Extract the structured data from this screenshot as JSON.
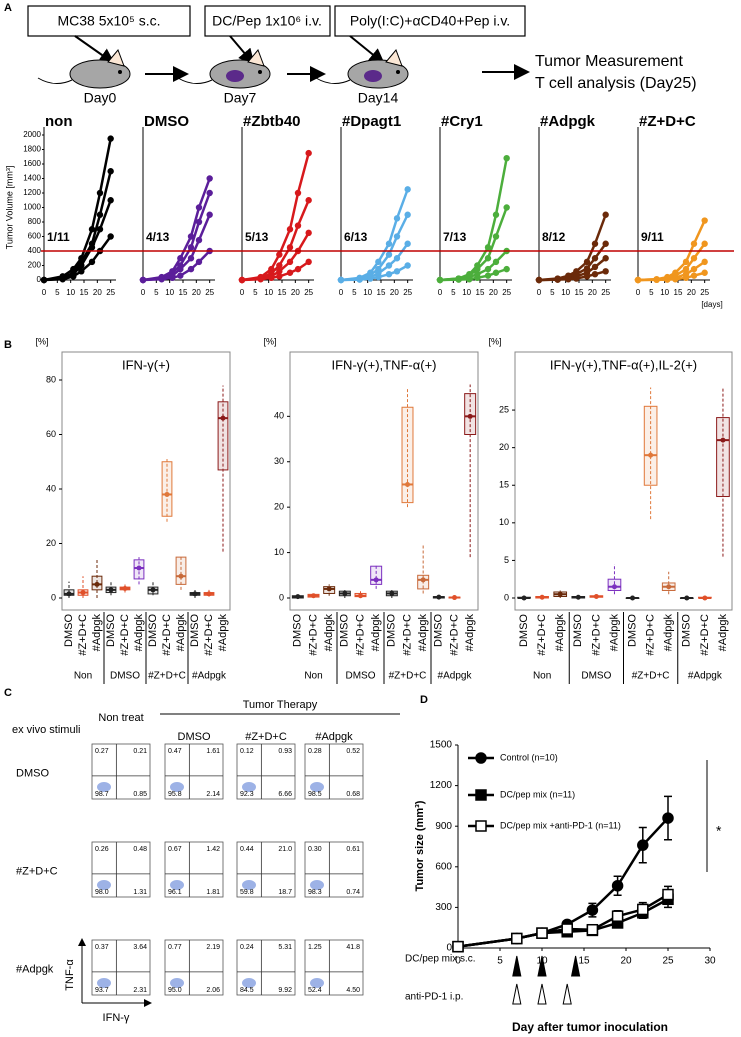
{
  "panel_labels": [
    "A",
    "B",
    "C",
    "D"
  ],
  "schematic": {
    "steps": [
      "MC38 5x10⁵ s.c.",
      "DC/Pep 1x10⁶ i.v.",
      "Poly(I:C)+αCD40+Pep i.v."
    ],
    "days": [
      "Day0",
      "Day7",
      "Day14"
    ],
    "endpoint": [
      "Tumor Measurement",
      "T cell analysis (Day25)"
    ]
  },
  "chart_data": [
    {
      "type": "line",
      "title": "non",
      "ratio": "1/11",
      "color": "#000000",
      "y_label": "Tumor Volume [mm³]",
      "x": [
        0,
        7,
        11,
        14,
        18,
        21,
        25
      ],
      "xlim": [
        0,
        27
      ],
      "xticks": [
        0,
        5,
        10,
        15,
        20,
        25
      ],
      "ylim": [
        0,
        2000
      ],
      "yticks": [
        0,
        200,
        400,
        600,
        800,
        1000,
        1200,
        1400,
        1600,
        1800,
        2000
      ],
      "reference_line": 400,
      "reference_color": "#c00000",
      "series": [
        {
          "values": [
            0,
            50,
            150,
            300,
            700,
            1200,
            1950
          ]
        },
        {
          "values": [
            0,
            30,
            100,
            250,
            500,
            900,
            1500
          ]
        },
        {
          "values": [
            0,
            20,
            80,
            200,
            450,
            700,
            1100
          ]
        },
        {
          "values": [
            0,
            10,
            50,
            120,
            250,
            400,
            600
          ]
        }
      ]
    },
    {
      "type": "line",
      "title": "DMSO",
      "ratio": "4/13",
      "color": "#5b1e9a",
      "x": [
        0,
        7,
        11,
        14,
        18,
        21,
        25
      ],
      "xlim": [
        0,
        27
      ],
      "xticks": [
        0,
        5,
        10,
        15,
        20,
        25
      ],
      "ylim": [
        0,
        2000
      ],
      "reference_line": 400,
      "reference_color": "#c00000",
      "series": [
        {
          "values": [
            0,
            40,
            120,
            300,
            600,
            1000,
            1400
          ]
        },
        {
          "values": [
            0,
            30,
            100,
            200,
            450,
            800,
            1200
          ]
        },
        {
          "values": [
            0,
            20,
            60,
            150,
            300,
            550,
            900
          ]
        },
        {
          "values": [
            0,
            10,
            30,
            60,
            150,
            250,
            400
          ]
        }
      ]
    },
    {
      "type": "line",
      "title": "#Zbtb40",
      "ratio": "5/13",
      "color": "#d7191c",
      "x": [
        0,
        7,
        11,
        14,
        18,
        21,
        25
      ],
      "xlim": [
        0,
        27
      ],
      "xticks": [
        0,
        5,
        10,
        15,
        20,
        25
      ],
      "ylim": [
        0,
        2000
      ],
      "reference_line": 400,
      "reference_color": "#c00000",
      "series": [
        {
          "values": [
            0,
            40,
            150,
            350,
            700,
            1200,
            1750
          ]
        },
        {
          "values": [
            0,
            30,
            90,
            200,
            450,
            750,
            1100
          ]
        },
        {
          "values": [
            0,
            20,
            50,
            120,
            250,
            400,
            650
          ]
        },
        {
          "values": [
            0,
            10,
            30,
            50,
            100,
            150,
            250
          ]
        }
      ]
    },
    {
      "type": "line",
      "title": "#Dpagt1",
      "ratio": "6/13",
      "color": "#5aaee6",
      "x": [
        0,
        7,
        11,
        14,
        18,
        21,
        25
      ],
      "xlim": [
        0,
        27
      ],
      "xticks": [
        0,
        5,
        10,
        15,
        20,
        25
      ],
      "ylim": [
        0,
        2000
      ],
      "reference_line": 400,
      "reference_color": "#c00000",
      "series": [
        {
          "values": [
            0,
            30,
            100,
            250,
            500,
            850,
            1250
          ]
        },
        {
          "values": [
            0,
            20,
            70,
            150,
            350,
            600,
            900
          ]
        },
        {
          "values": [
            0,
            10,
            40,
            90,
            200,
            300,
            500
          ]
        },
        {
          "values": [
            0,
            5,
            20,
            40,
            80,
            120,
            200
          ]
        }
      ]
    },
    {
      "type": "line",
      "title": "#Cry1",
      "ratio": "7/13",
      "color": "#4cae3c",
      "x": [
        0,
        7,
        11,
        14,
        18,
        21,
        25
      ],
      "xlim": [
        0,
        27
      ],
      "xticks": [
        0,
        5,
        10,
        15,
        20,
        25
      ],
      "ylim": [
        0,
        2000
      ],
      "reference_line": 400,
      "reference_color": "#c00000",
      "series": [
        {
          "values": [
            0,
            20,
            80,
            200,
            450,
            900,
            1680
          ]
        },
        {
          "values": [
            0,
            20,
            60,
            150,
            300,
            600,
            1000
          ]
        },
        {
          "values": [
            0,
            10,
            40,
            80,
            150,
            250,
            400
          ]
        },
        {
          "values": [
            0,
            5,
            10,
            30,
            60,
            100,
            150
          ]
        }
      ]
    },
    {
      "type": "line",
      "title": "#Adpgk",
      "ratio": "8/12",
      "color": "#6b2a0a",
      "x": [
        0,
        7,
        11,
        14,
        18,
        21,
        25
      ],
      "xlim": [
        0,
        27
      ],
      "xticks": [
        0,
        5,
        10,
        15,
        20,
        25
      ],
      "ylim": [
        0,
        2000
      ],
      "reference_line": 400,
      "reference_color": "#c00000",
      "series": [
        {
          "values": [
            0,
            20,
            60,
            120,
            250,
            500,
            900
          ]
        },
        {
          "values": [
            0,
            10,
            40,
            80,
            160,
            300,
            500
          ]
        },
        {
          "values": [
            0,
            5,
            20,
            50,
            100,
            180,
            300
          ]
        },
        {
          "values": [
            0,
            5,
            10,
            20,
            50,
            80,
            120
          ]
        }
      ]
    },
    {
      "type": "line",
      "title": "#Z+D+C",
      "ratio": "9/11",
      "color": "#f0961e",
      "x_unit": "[days]",
      "x": [
        0,
        7,
        11,
        14,
        18,
        21,
        25
      ],
      "xlim": [
        0,
        27
      ],
      "xticks": [
        0,
        5,
        10,
        15,
        20,
        25
      ],
      "ylim": [
        0,
        2000
      ],
      "reference_line": 400,
      "reference_color": "#c00000",
      "series": [
        {
          "values": [
            0,
            10,
            40,
            100,
            250,
            500,
            820
          ]
        },
        {
          "values": [
            0,
            10,
            30,
            60,
            150,
            300,
            500
          ]
        },
        {
          "values": [
            0,
            5,
            15,
            30,
            80,
            150,
            250
          ]
        },
        {
          "values": [
            0,
            2,
            5,
            10,
            30,
            60,
            100
          ]
        }
      ]
    },
    {
      "type": "box",
      "title": "IFN-γ(+)",
      "unit": "[%]",
      "categories": [
        "DMSO",
        "#Z+D+C",
        "#Adpgk",
        "DMSO",
        "#Z+D+C",
        "#Adpgk",
        "DMSO",
        "#Z+D+C",
        "#Adpgk",
        "DMSO",
        "#Z+D+C",
        "#Adpgk"
      ],
      "groups": [
        "Non",
        "DMSO",
        "#Z+D+C",
        "#Adpgk"
      ],
      "colors": [
        "#222222",
        "#e0502a",
        "#6b2a0a",
        "#222222",
        "#e0502a",
        "#7b2fbf",
        "#222222",
        "#e0783a",
        "#c86a3a",
        "#222222",
        "#e0502a",
        "#8b1a1a"
      ],
      "ylim": [
        0,
        80
      ],
      "yticks": [
        0,
        20,
        40,
        60,
        80
      ],
      "boxes": [
        [
          0,
          1,
          1.5,
          3,
          6
        ],
        [
          0,
          1,
          2,
          3,
          8
        ],
        [
          0,
          3,
          5,
          8,
          14
        ],
        [
          1,
          2,
          3,
          4,
          6
        ],
        [
          2,
          3,
          3.5,
          4,
          5
        ],
        [
          5,
          7,
          11,
          14,
          15
        ],
        [
          1,
          1.5,
          3,
          4,
          6
        ],
        [
          28,
          30,
          38,
          50,
          51
        ],
        [
          3,
          5,
          8,
          15,
          15
        ],
        [
          0,
          1,
          1.5,
          2,
          3
        ],
        [
          0.5,
          1,
          1.5,
          2,
          3
        ],
        [
          17,
          47,
          66,
          72,
          78
        ]
      ]
    },
    {
      "type": "box",
      "title": "IFN-γ(+),TNF-α(+)",
      "unit": "[%]",
      "categories": [
        "DMSO",
        "#Z+D+C",
        "#Adpgk",
        "DMSO",
        "#Z+D+C",
        "#Adpgk",
        "DMSO",
        "#Z+D+C",
        "#Adpgk",
        "DMSO",
        "#Z+D+C",
        "#Adpgk"
      ],
      "groups": [
        "Non",
        "DMSO",
        "#Z+D+C",
        "#Adpgk"
      ],
      "colors": [
        "#222222",
        "#e0502a",
        "#6b2a0a",
        "#222222",
        "#e0502a",
        "#7b2fbf",
        "#222222",
        "#e0783a",
        "#c86a3a",
        "#222222",
        "#e0502a",
        "#8b1a1a"
      ],
      "ylim": [
        0,
        48
      ],
      "yticks": [
        0,
        10,
        20,
        30,
        40
      ],
      "boxes": [
        [
          0,
          0,
          0.3,
          0.5,
          1
        ],
        [
          0,
          0.2,
          0.5,
          0.8,
          1
        ],
        [
          0.5,
          1,
          2,
          2.5,
          3
        ],
        [
          0,
          0.5,
          1,
          1.5,
          2
        ],
        [
          0,
          0.3,
          0.5,
          1,
          1.5
        ],
        [
          2,
          3,
          4,
          7,
          7.5
        ],
        [
          0,
          0.5,
          1,
          1.5,
          2
        ],
        [
          20,
          21,
          25,
          42,
          46
        ],
        [
          1,
          2,
          4,
          5,
          12
        ],
        [
          0,
          0,
          0.2,
          0.3,
          0.5
        ],
        [
          0,
          0,
          0.1,
          0.2,
          0.3
        ],
        [
          9,
          36,
          40,
          45,
          47
        ]
      ]
    },
    {
      "type": "box",
      "title": "IFN-γ(+),TNF-α(+),IL-2(+)",
      "unit": "[%]",
      "categories": [
        "DMSO",
        "#Z+D+C",
        "#Adpgk",
        "DMSO",
        "#Z+D+C",
        "#Adpgk",
        "DMSO",
        "#Z+D+C",
        "#Adpgk",
        "DMSO",
        "#Z+D+C",
        "#Adpgk"
      ],
      "groups": [
        "Non",
        "DMSO",
        "#Z+D+C",
        "#Adpgk"
      ],
      "colors": [
        "#222222",
        "#e0502a",
        "#6b2a0a",
        "#222222",
        "#e0502a",
        "#7b2fbf",
        "#222222",
        "#e0783a",
        "#c86a3a",
        "#222222",
        "#e0502a",
        "#8b1a1a"
      ],
      "ylim": [
        0,
        29
      ],
      "yticks": [
        0,
        5,
        10,
        15,
        20,
        25
      ],
      "boxes": [
        [
          0,
          0,
          0,
          0.1,
          0.2
        ],
        [
          0,
          0,
          0.1,
          0.2,
          0.3
        ],
        [
          0,
          0.2,
          0.5,
          0.8,
          1
        ],
        [
          0,
          0,
          0.1,
          0.2,
          0.3
        ],
        [
          0,
          0.1,
          0.2,
          0.3,
          0.5
        ],
        [
          0.5,
          1,
          1.5,
          2.5,
          4.5
        ],
        [
          0,
          0,
          0,
          0,
          0.1
        ],
        [
          10.5,
          15,
          19,
          25.5,
          28
        ],
        [
          0.5,
          1,
          1.5,
          2,
          3.5
        ],
        [
          0,
          0,
          0,
          0,
          0.1
        ],
        [
          0,
          0,
          0,
          0.1,
          0.2
        ],
        [
          5.5,
          13.5,
          21,
          24,
          28
        ]
      ]
    },
    {
      "type": "line",
      "y_label": "Tumor size (mm³)",
      "x_label": "Day after tumor inoculation",
      "x": [
        0,
        7,
        10,
        13,
        16,
        19,
        22,
        25
      ],
      "xlim": [
        0,
        30
      ],
      "xticks": [
        0,
        5,
        10,
        15,
        20,
        25,
        30
      ],
      "ylim": [
        0,
        1500
      ],
      "yticks": [
        0,
        300,
        600,
        900,
        1200,
        1500
      ],
      "significance": "*",
      "series": [
        {
          "name": "Control (n=10)",
          "color": "#000000",
          "marker": "circle",
          "fill": "#000000",
          "values": [
            10,
            70,
            110,
            175,
            280,
            460,
            760,
            960
          ],
          "errors": [
            0,
            10,
            15,
            20,
            50,
            70,
            130,
            160
          ]
        },
        {
          "name": "DC/pep mix (n=11)",
          "color": "#000000",
          "marker": "square",
          "fill": "#000000",
          "values": [
            10,
            70,
            110,
            120,
            130,
            185,
            260,
            360
          ],
          "errors": [
            0,
            10,
            10,
            15,
            20,
            25,
            40,
            60
          ]
        },
        {
          "name": "DC/pep mix +anti-PD-1 (n=11)",
          "color": "#000000",
          "marker": "square",
          "fill": "#ffffff",
          "values": [
            10,
            70,
            110,
            140,
            135,
            235,
            285,
            395
          ],
          "errors": [
            0,
            10,
            10,
            15,
            20,
            40,
            50,
            60
          ]
        }
      ],
      "injections": [
        {
          "label": "DC/pep mix s.c.",
          "days": [
            7,
            10,
            14
          ],
          "fill": "#000000"
        },
        {
          "label": "anti-PD-1 i.p.",
          "days": [
            7,
            10,
            13
          ],
          "fill": "#ffffff"
        }
      ]
    }
  ],
  "flow": {
    "column_header": "Tumor Therapy",
    "row_header": "ex vivo stimuli",
    "columns": [
      "Non treat",
      "DMSO",
      "#Z+D+C",
      "#Adpgk"
    ],
    "rows": [
      "DMSO",
      "#Z+D+C",
      "#Adpgk"
    ],
    "x_label": "IFN-γ",
    "y_label": "TNF-α",
    "quadrants": [
      [
        [
          "0.27",
          "0.21",
          "98.7",
          "0.85"
        ],
        [
          "0.47",
          "1.61",
          "95.8",
          "2.14"
        ],
        [
          "0.12",
          "0.93",
          "92.3",
          "6.66"
        ],
        [
          "0.28",
          "0.52",
          "98.5",
          "0.68"
        ]
      ],
      [
        [
          "0.26",
          "0.48",
          "98.0",
          "1.31"
        ],
        [
          "0.67",
          "1.42",
          "96.1",
          "1.81"
        ],
        [
          "0.44",
          "21.0",
          "59.8",
          "18.7"
        ],
        [
          "0.30",
          "0.61",
          "98.3",
          "0.74"
        ]
      ],
      [
        [
          "0.37",
          "3.64",
          "93.7",
          "2.31"
        ],
        [
          "0.77",
          "2.19",
          "95.0",
          "2.06"
        ],
        [
          "0.24",
          "5.31",
          "84.5",
          "9.92"
        ],
        [
          "1.25",
          "41.8",
          "52.4",
          "4.50"
        ]
      ]
    ]
  }
}
